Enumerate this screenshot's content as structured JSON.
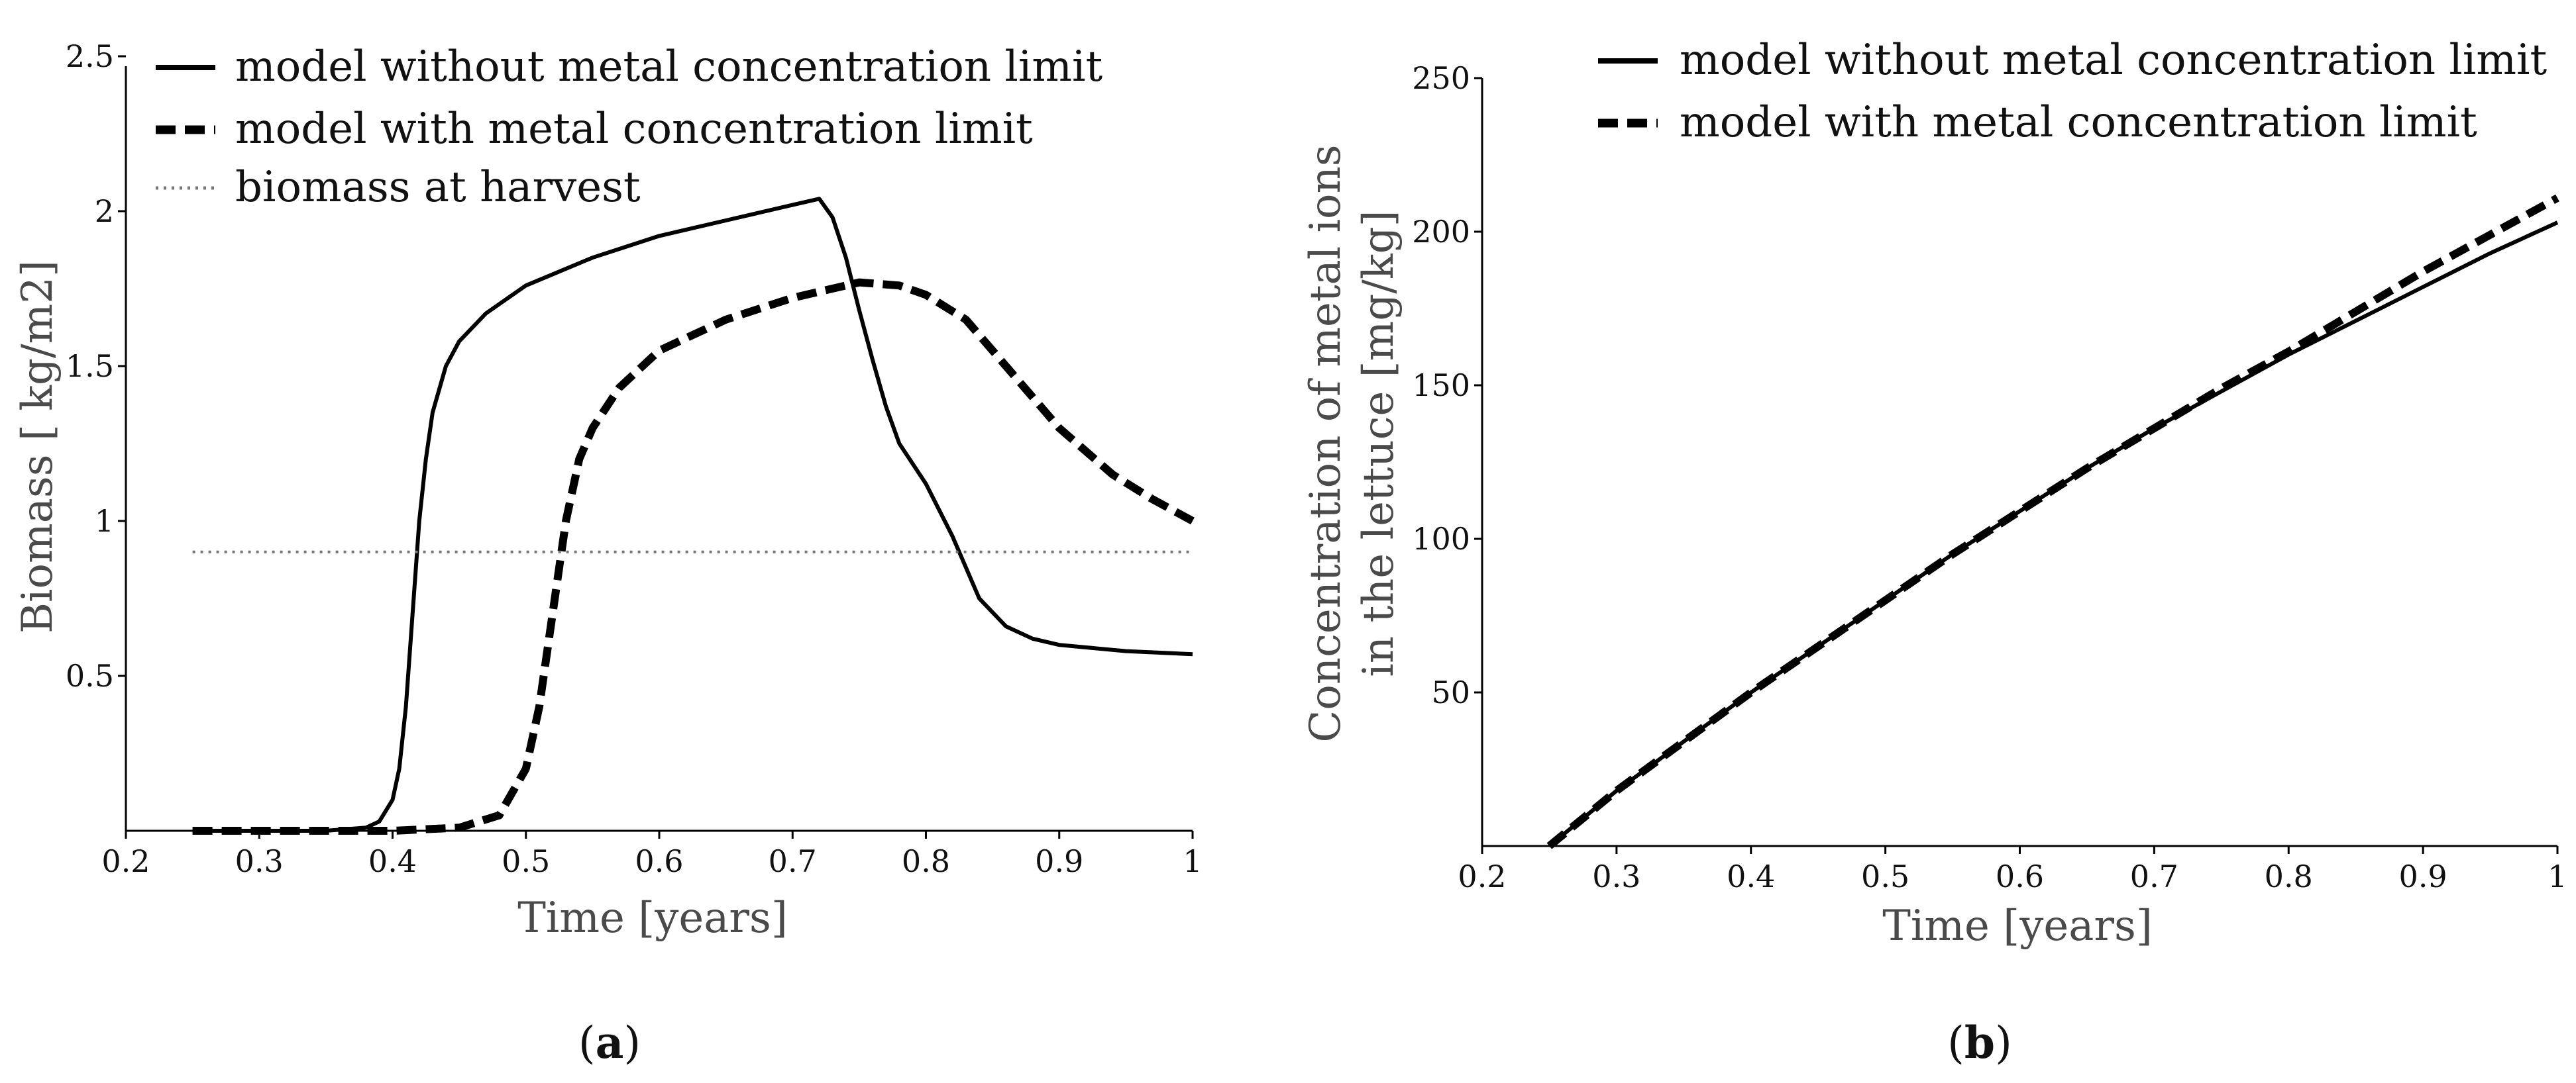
{
  "chart_data": [
    {
      "type": "line",
      "panel_label_prefix": "(",
      "panel_label": "a",
      "panel_label_suffix": ")",
      "xlabel": "Time [years]",
      "ylabel": "Biomass [ kg/m2]",
      "xlim": [
        0.2,
        1.0
      ],
      "ylim": [
        0,
        2.5
      ],
      "xticks": [
        "0.2",
        "0.3",
        "0.4",
        "0.5",
        "0.6",
        "0.7",
        "0.8",
        "0.9",
        "1"
      ],
      "yticks": [
        "0.5",
        "1",
        "1.5",
        "2",
        "2.5"
      ],
      "legend_position": "top-left",
      "series": [
        {
          "name": "model without metal concentration limit",
          "style": "solid",
          "x": [
            0.25,
            0.3,
            0.35,
            0.38,
            0.39,
            0.4,
            0.405,
            0.41,
            0.415,
            0.42,
            0.425,
            0.43,
            0.44,
            0.45,
            0.47,
            0.5,
            0.55,
            0.6,
            0.65,
            0.7,
            0.72,
            0.73,
            0.74,
            0.75,
            0.76,
            0.77,
            0.78,
            0.8,
            0.82,
            0.84,
            0.86,
            0.88,
            0.9,
            0.95,
            1.0
          ],
          "y": [
            0.0,
            0.0,
            0.0,
            0.01,
            0.03,
            0.1,
            0.2,
            0.4,
            0.7,
            1.0,
            1.2,
            1.35,
            1.5,
            1.58,
            1.67,
            1.76,
            1.85,
            1.92,
            1.97,
            2.02,
            2.04,
            1.98,
            1.85,
            1.68,
            1.52,
            1.37,
            1.25,
            1.12,
            0.95,
            0.75,
            0.66,
            0.62,
            0.6,
            0.58,
            0.57
          ]
        },
        {
          "name": "model with metal concentration limit",
          "style": "dashed",
          "x": [
            0.25,
            0.3,
            0.35,
            0.4,
            0.45,
            0.48,
            0.5,
            0.51,
            0.52,
            0.53,
            0.54,
            0.55,
            0.57,
            0.6,
            0.65,
            0.7,
            0.75,
            0.78,
            0.8,
            0.83,
            0.86,
            0.9,
            0.94,
            0.97,
            1.0
          ],
          "y": [
            0.0,
            0.0,
            0.0,
            0.0,
            0.01,
            0.05,
            0.2,
            0.4,
            0.7,
            1.0,
            1.2,
            1.3,
            1.43,
            1.55,
            1.65,
            1.72,
            1.77,
            1.76,
            1.73,
            1.65,
            1.5,
            1.3,
            1.15,
            1.07,
            1.0
          ]
        },
        {
          "name": "biomass at harvest",
          "style": "dotted",
          "x": [
            0.25,
            1.0
          ],
          "y": [
            0.9,
            0.9
          ]
        }
      ]
    },
    {
      "type": "line",
      "panel_label_prefix": "(",
      "panel_label": "b",
      "panel_label_suffix": ")",
      "xlabel": "Time [years]",
      "ylabel_line1": "Concentration of metal ions",
      "ylabel_line2": "in the lettuce [mg/kg]",
      "xlim": [
        0.2,
        1.0
      ],
      "ylim": [
        0,
        250
      ],
      "xticks": [
        "0.2",
        "0.3",
        "0.4",
        "0.5",
        "0.6",
        "0.7",
        "0.8",
        "0.9",
        "1"
      ],
      "yticks": [
        "50",
        "100",
        "150",
        "200",
        "250"
      ],
      "legend_position": "top-right",
      "series": [
        {
          "name": "model without metal concentration limit",
          "style": "solid",
          "x": [
            0.25,
            0.3,
            0.35,
            0.4,
            0.45,
            0.5,
            0.55,
            0.6,
            0.65,
            0.7,
            0.75,
            0.8,
            0.85,
            0.9,
            0.95,
            1.0
          ],
          "y": [
            0,
            18,
            34,
            50,
            65,
            80,
            95,
            109,
            123,
            136,
            148,
            160,
            171,
            182,
            193,
            203
          ]
        },
        {
          "name": "model with metal concentration limit",
          "style": "dashed",
          "x": [
            0.25,
            0.3,
            0.35,
            0.4,
            0.45,
            0.5,
            0.55,
            0.6,
            0.65,
            0.7,
            0.75,
            0.8,
            0.85,
            0.9,
            0.95,
            1.0
          ],
          "y": [
            0,
            18,
            34,
            50,
            65,
            80,
            95,
            109,
            123,
            136,
            149,
            161,
            174,
            187,
            199,
            211
          ]
        }
      ]
    }
  ]
}
